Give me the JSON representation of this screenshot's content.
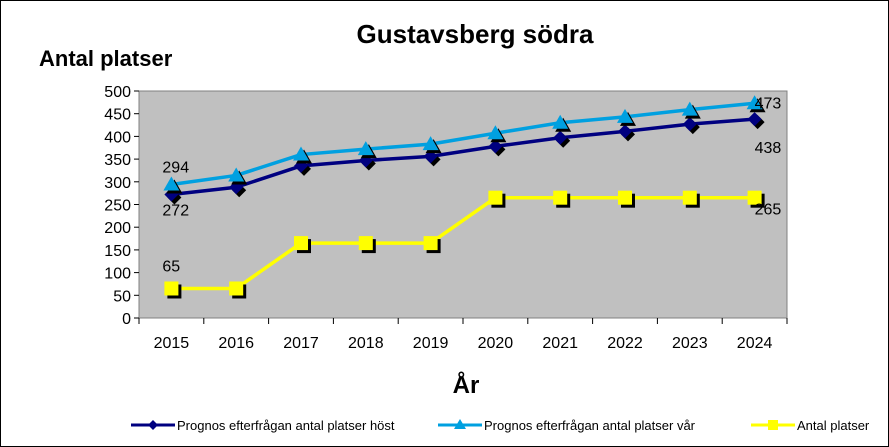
{
  "chart_data": {
    "type": "line",
    "title": "Gustavsberg södra",
    "ylabel": "Antal platser",
    "xlabel": "År",
    "categories": [
      "2015",
      "2016",
      "2017",
      "2018",
      "2019",
      "2020",
      "2021",
      "2022",
      "2023",
      "2024"
    ],
    "ylim": [
      0,
      500
    ],
    "yticks": [
      "0",
      "50",
      "100",
      "150",
      "200",
      "250",
      "300",
      "350",
      "400",
      "450",
      "500"
    ],
    "grid": false,
    "legend_position": "bottom",
    "plot_background": "#c0c0c0",
    "series": [
      {
        "name": "Prognos efterfrågan antal platser höst",
        "color": "#000080",
        "marker": "diamond",
        "values": [
          272,
          288,
          335,
          347,
          356,
          378,
          397,
          411,
          427,
          438
        ],
        "labels": {
          "0": "272",
          "9": "438"
        }
      },
      {
        "name": "Prognos efterfrågan antal platser vår",
        "color": "#00a0e0",
        "marker": "triangle",
        "values": [
          294,
          314,
          360,
          372,
          383,
          407,
          430,
          443,
          459,
          473
        ],
        "labels": {
          "0": "294",
          "9": "473"
        }
      },
      {
        "name": "Antal platser",
        "color": "#ffff00",
        "marker": "square",
        "values": [
          65,
          65,
          165,
          165,
          165,
          265,
          265,
          265,
          265,
          265
        ],
        "labels": {
          "0": "65",
          "9": "265"
        }
      }
    ]
  }
}
